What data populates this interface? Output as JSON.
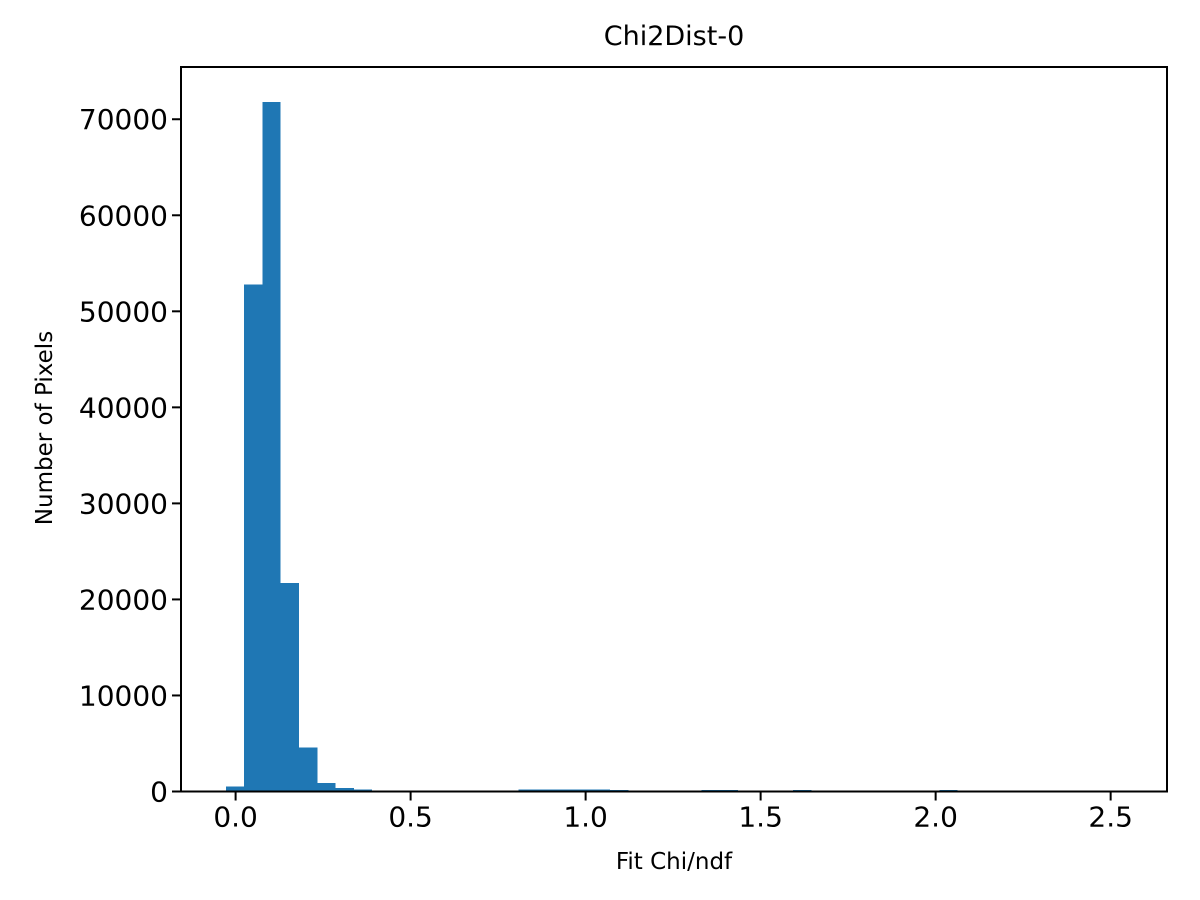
{
  "figure": {
    "background_color": "#ffffff",
    "text_color": "#000000",
    "axis_color": "#000000"
  },
  "chart_data": {
    "type": "bar",
    "subtype": "histogram",
    "title": "Chi2Dist-0",
    "xlabel": "Fit Chi/ndf",
    "ylabel": "Number of Pixels",
    "bar_color": "#1f77b4",
    "grid": "off",
    "legend": "none",
    "xlim": [
      -0.156,
      2.661
    ],
    "ylim": [
      0,
      75440
    ],
    "xticks": [
      0.0,
      0.5,
      1.0,
      1.5,
      2.0,
      2.5
    ],
    "xtick_labels": [
      "0.0",
      "0.5",
      "1.0",
      "1.5",
      "2.0",
      "2.5"
    ],
    "yticks": [
      0,
      10000,
      20000,
      30000,
      40000,
      50000,
      60000,
      70000
    ],
    "ytick_labels": [
      "0",
      "10000",
      "20000",
      "30000",
      "40000",
      "50000",
      "60000",
      "70000"
    ],
    "bins": {
      "start": -0.028,
      "width": 0.05227,
      "count": 49
    },
    "counts": [
      500,
      52800,
      71800,
      21700,
      4600,
      900,
      370,
      200,
      0,
      0,
      0,
      0,
      0,
      0,
      0,
      0,
      200,
      220,
      210,
      200,
      200,
      160,
      0,
      0,
      0,
      0,
      160,
      150,
      0,
      0,
      0,
      140,
      130,
      0,
      0,
      0,
      0,
      0,
      0,
      150,
      0,
      0,
      0,
      0,
      0,
      0,
      0,
      0,
      0
    ]
  }
}
